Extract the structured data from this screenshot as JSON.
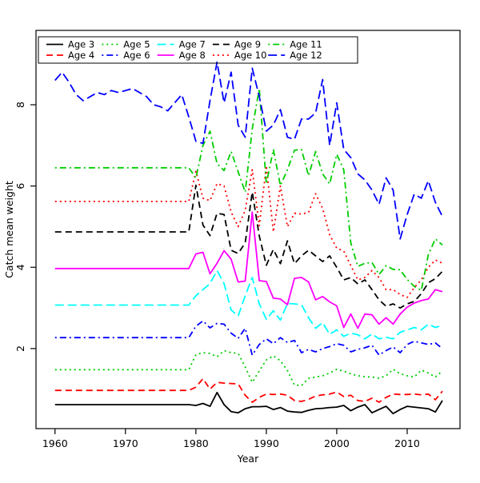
{
  "figure_title": "",
  "axes": {
    "xlabel": "Year",
    "ylabel": "Catch mean weight",
    "x_ticks": [
      1960,
      1970,
      1980,
      1990,
      2000,
      2010
    ],
    "y_ticks": [
      2,
      4,
      6,
      8
    ]
  },
  "legend": {
    "ncol": 5,
    "nrow": 2,
    "position": "top-left",
    "order": "column-major"
  },
  "colors": {
    "black": "#000000",
    "red": "#ff0000",
    "green": "#00cd00",
    "blue": "#0000ff",
    "cyan": "#00ffff",
    "magenta": "#ff00ff"
  },
  "chart_data": {
    "type": "line",
    "title": "",
    "xlabel": "Year",
    "ylabel": "Catch mean weight",
    "xlim": [
      1957.3,
      2017.5
    ],
    "ylim": [
      0.03,
      9.83
    ],
    "grid": false,
    "x": [
      1960,
      1961,
      1962,
      1963,
      1964,
      1965,
      1966,
      1967,
      1968,
      1969,
      1970,
      1971,
      1972,
      1973,
      1974,
      1975,
      1976,
      1977,
      1978,
      1979,
      1980,
      1981,
      1982,
      1983,
      1984,
      1985,
      1986,
      1987,
      1988,
      1989,
      1990,
      1991,
      1992,
      1993,
      1994,
      1995,
      1996,
      1997,
      1998,
      1999,
      2000,
      2001,
      2002,
      2003,
      2004,
      2005,
      2006,
      2007,
      2008,
      2009,
      2010,
      2011,
      2012,
      2013,
      2014,
      2015
    ],
    "series": [
      {
        "name": "Age 3",
        "color": "#000000",
        "linetype": "solid",
        "values": [
          0.62,
          0.62,
          0.62,
          0.62,
          0.62,
          0.62,
          0.62,
          0.62,
          0.62,
          0.62,
          0.62,
          0.62,
          0.62,
          0.62,
          0.62,
          0.62,
          0.62,
          0.62,
          0.62,
          0.62,
          0.6,
          0.65,
          0.58,
          0.92,
          0.62,
          0.45,
          0.42,
          0.52,
          0.57,
          0.57,
          0.58,
          0.5,
          0.55,
          0.46,
          0.44,
          0.43,
          0.48,
          0.52,
          0.53,
          0.55,
          0.56,
          0.6,
          0.47,
          0.56,
          0.62,
          0.42,
          0.5,
          0.58,
          0.4,
          0.5,
          0.58,
          0.56,
          0.54,
          0.52,
          0.44,
          0.72
        ]
      },
      {
        "name": "Age 4",
        "color": "#ff0000",
        "linetype": "dashed",
        "values": [
          0.97,
          0.97,
          0.97,
          0.97,
          0.97,
          0.97,
          0.97,
          0.97,
          0.97,
          0.97,
          0.97,
          0.97,
          0.97,
          0.97,
          0.97,
          0.97,
          0.97,
          0.97,
          0.97,
          0.97,
          1.05,
          1.26,
          1.0,
          1.17,
          1.15,
          1.14,
          1.13,
          0.85,
          0.68,
          0.8,
          0.88,
          0.87,
          0.88,
          0.85,
          0.72,
          0.7,
          0.75,
          0.83,
          0.86,
          0.88,
          0.93,
          0.82,
          0.85,
          0.72,
          0.7,
          0.78,
          0.68,
          0.8,
          0.88,
          0.87,
          0.87,
          0.88,
          0.86,
          0.88,
          0.74,
          0.95
        ]
      },
      {
        "name": "Age 5",
        "color": "#00cd00",
        "linetype": "dotted",
        "values": [
          1.48,
          1.48,
          1.48,
          1.48,
          1.48,
          1.48,
          1.48,
          1.48,
          1.48,
          1.48,
          1.48,
          1.48,
          1.48,
          1.48,
          1.48,
          1.48,
          1.48,
          1.48,
          1.48,
          1.48,
          1.85,
          1.9,
          1.88,
          1.8,
          1.95,
          1.9,
          1.88,
          1.55,
          1.17,
          1.45,
          1.72,
          1.82,
          1.7,
          1.46,
          1.1,
          1.09,
          1.27,
          1.3,
          1.33,
          1.4,
          1.49,
          1.44,
          1.38,
          1.33,
          1.31,
          1.3,
          1.27,
          1.33,
          1.49,
          1.38,
          1.33,
          1.3,
          1.47,
          1.4,
          1.3,
          1.45
        ]
      },
      {
        "name": "Age 6",
        "color": "#0000ff",
        "linetype": "dotdash",
        "values": [
          2.27,
          2.27,
          2.27,
          2.27,
          2.27,
          2.27,
          2.27,
          2.27,
          2.27,
          2.27,
          2.27,
          2.27,
          2.27,
          2.27,
          2.27,
          2.27,
          2.27,
          2.27,
          2.27,
          2.27,
          2.55,
          2.68,
          2.51,
          2.62,
          2.6,
          2.38,
          2.25,
          2.5,
          1.84,
          2.1,
          2.24,
          2.12,
          2.27,
          2.15,
          2.2,
          1.9,
          1.98,
          1.92,
          2.0,
          2.05,
          2.12,
          2.08,
          1.92,
          1.98,
          2.02,
          2.08,
          1.84,
          1.95,
          2.04,
          1.9,
          2.1,
          2.18,
          2.14,
          2.1,
          2.14,
          2.0
        ]
      },
      {
        "name": "Age 7",
        "color": "#00ffff",
        "linetype": "longdash",
        "values": [
          3.07,
          3.07,
          3.07,
          3.07,
          3.07,
          3.07,
          3.07,
          3.07,
          3.07,
          3.07,
          3.07,
          3.07,
          3.07,
          3.07,
          3.07,
          3.07,
          3.07,
          3.07,
          3.07,
          3.07,
          3.3,
          3.45,
          3.6,
          3.92,
          3.6,
          2.95,
          2.8,
          3.3,
          3.75,
          3.1,
          2.72,
          2.93,
          2.7,
          3.11,
          3.1,
          3.08,
          2.76,
          2.5,
          2.64,
          2.35,
          2.46,
          2.3,
          2.38,
          2.34,
          2.24,
          2.36,
          2.24,
          2.28,
          2.24,
          2.4,
          2.46,
          2.52,
          2.46,
          2.6,
          2.52,
          2.57
        ]
      },
      {
        "name": "Age 8",
        "color": "#ff00ff",
        "linetype": "solid",
        "values": [
          3.97,
          3.97,
          3.97,
          3.97,
          3.97,
          3.97,
          3.97,
          3.97,
          3.97,
          3.97,
          3.97,
          3.97,
          3.97,
          3.97,
          3.97,
          3.97,
          3.97,
          3.97,
          3.97,
          3.97,
          4.33,
          4.37,
          3.84,
          4.1,
          4.41,
          4.2,
          3.64,
          3.66,
          5.36,
          3.67,
          3.65,
          3.24,
          3.22,
          3.08,
          3.73,
          3.75,
          3.64,
          3.2,
          3.28,
          3.15,
          3.05,
          2.52,
          2.85,
          2.5,
          2.85,
          2.83,
          2.6,
          2.76,
          2.6,
          2.85,
          3.02,
          3.12,
          3.18,
          3.22,
          3.45,
          3.4
        ]
      },
      {
        "name": "Age 9",
        "color": "#000000",
        "linetype": "dashed",
        "values": [
          4.87,
          4.87,
          4.87,
          4.87,
          4.87,
          4.87,
          4.87,
          4.87,
          4.87,
          4.87,
          4.87,
          4.87,
          4.87,
          4.87,
          4.87,
          4.87,
          4.87,
          4.87,
          4.87,
          4.87,
          6.02,
          5.04,
          4.78,
          5.33,
          5.3,
          4.42,
          4.34,
          4.6,
          5.85,
          4.77,
          4.05,
          4.44,
          4.09,
          4.65,
          4.09,
          4.28,
          4.42,
          4.28,
          4.14,
          4.28,
          4.0,
          3.69,
          3.75,
          3.59,
          3.69,
          3.45,
          3.2,
          3.04,
          3.1,
          3.0,
          3.1,
          3.16,
          3.35,
          3.62,
          3.72,
          3.9
        ]
      },
      {
        "name": "Age 10",
        "color": "#ff0000",
        "linetype": "dotted",
        "values": [
          5.62,
          5.62,
          5.62,
          5.62,
          5.62,
          5.62,
          5.62,
          5.62,
          5.62,
          5.62,
          5.62,
          5.62,
          5.62,
          5.62,
          5.62,
          5.62,
          5.62,
          5.62,
          5.62,
          5.62,
          6.36,
          5.7,
          5.64,
          6.06,
          6.0,
          5.36,
          5.0,
          5.4,
          6.4,
          5.02,
          6.5,
          4.87,
          6.0,
          5.0,
          5.33,
          5.31,
          5.35,
          5.81,
          5.45,
          4.8,
          4.47,
          4.4,
          4.04,
          3.69,
          3.75,
          3.92,
          3.75,
          3.45,
          3.45,
          3.33,
          3.26,
          3.5,
          3.69,
          4.0,
          4.18,
          4.1
        ]
      },
      {
        "name": "Age 11",
        "color": "#00cd00",
        "linetype": "dotdash",
        "values": [
          6.45,
          6.45,
          6.45,
          6.45,
          6.45,
          6.45,
          6.45,
          6.45,
          6.45,
          6.45,
          6.45,
          6.45,
          6.45,
          6.45,
          6.45,
          6.45,
          6.45,
          6.45,
          6.45,
          6.45,
          6.2,
          7.0,
          7.35,
          6.55,
          6.38,
          6.85,
          6.35,
          5.85,
          7.4,
          8.4,
          6.05,
          6.9,
          6.01,
          6.4,
          6.88,
          6.9,
          6.25,
          6.85,
          6.3,
          6.05,
          6.78,
          6.4,
          4.6,
          4.02,
          4.1,
          4.12,
          3.82,
          4.04,
          3.95,
          3.94,
          3.7,
          3.53,
          3.43,
          4.31,
          4.7,
          4.55
        ]
      },
      {
        "name": "Age 12",
        "color": "#0000ff",
        "linetype": "longdash",
        "values": [
          8.6,
          8.8,
          8.55,
          8.25,
          8.1,
          8.2,
          8.3,
          8.25,
          8.35,
          8.3,
          8.35,
          8.4,
          8.3,
          8.2,
          8.0,
          7.95,
          7.85,
          8.05,
          8.25,
          7.7,
          7.1,
          7.05,
          8.1,
          9.05,
          8.05,
          8.8,
          7.5,
          7.2,
          8.9,
          8.2,
          7.35,
          7.5,
          7.88,
          7.2,
          7.15,
          7.65,
          7.65,
          7.8,
          8.62,
          7.0,
          8.05,
          6.9,
          6.7,
          6.3,
          6.15,
          5.9,
          5.55,
          6.2,
          5.9,
          4.7,
          5.3,
          5.8,
          5.7,
          6.13,
          5.6,
          5.25
        ]
      }
    ],
    "legend_entries": [
      "Age 3",
      "Age 4",
      "Age 5",
      "Age 6",
      "Age 7",
      "Age 8",
      "Age 9",
      "Age 10",
      "Age 11",
      "Age 12"
    ]
  }
}
